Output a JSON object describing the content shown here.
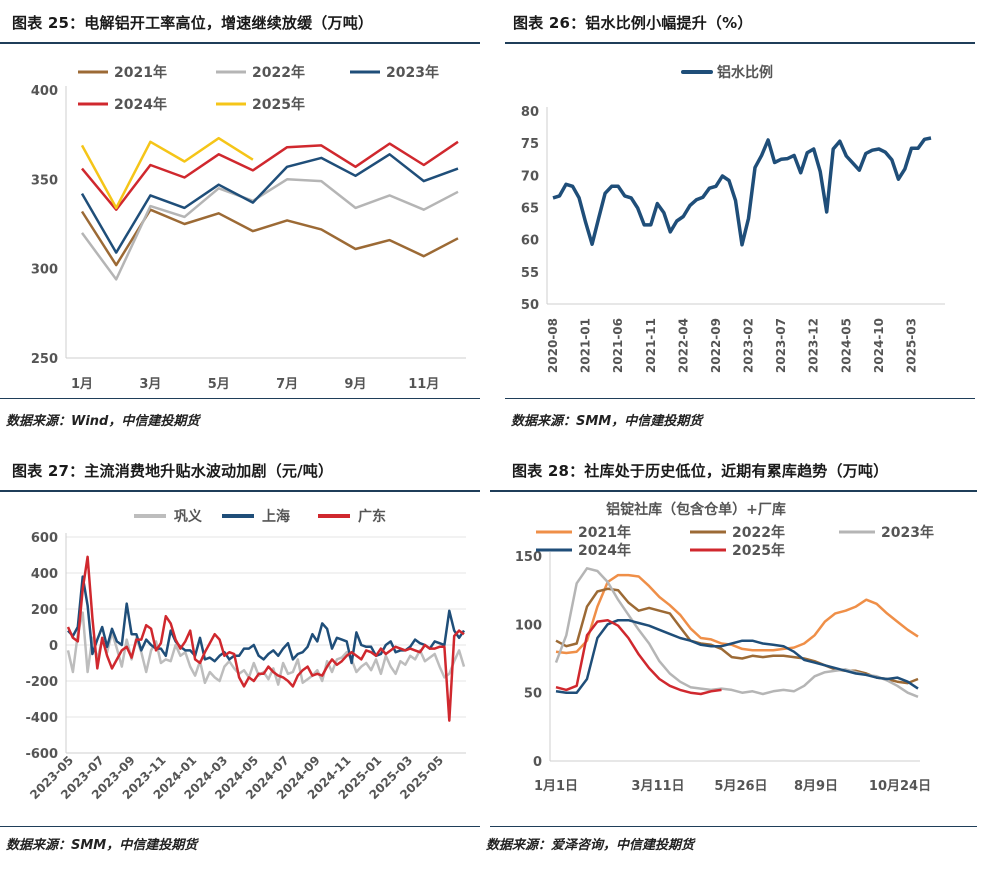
{
  "panels": [
    {
      "title": "图表 25：电解铝开工率高位，增速继续放缓（万吨）",
      "source": "数据来源：Wind，中信建投期货"
    },
    {
      "title": "图表 26：铝水比例小幅提升（%）",
      "source": "数据来源：SMM，中信建投期货"
    },
    {
      "title": "图表 27：主流消费地升贴水波动加剧（元/吨）",
      "source": "数据来源：SMM，中信建投期货"
    },
    {
      "title": "图表 28：社库处于历史低位，近期有累库趋势（万吨）",
      "source": "数据来源：爱泽咨询，中信建投期货"
    }
  ],
  "chart_data": [
    {
      "type": "line",
      "title": "",
      "x_ticks": [
        "1月",
        "3月",
        "5月",
        "7月",
        "9月",
        "11月"
      ],
      "ylim": [
        250,
        400
      ],
      "y_ticks": [
        250,
        300,
        350,
        400
      ],
      "legend_position": "top",
      "grid": false,
      "series": [
        {
          "name": "2021年",
          "color": "#9c6a35",
          "x": [
            1,
            2,
            3,
            4,
            5,
            6,
            7,
            8,
            9,
            10,
            11,
            12
          ],
          "values": [
            332,
            302,
            333,
            325,
            331,
            321,
            327,
            322,
            311,
            316,
            307,
            317
          ]
        },
        {
          "name": "2022年",
          "color": "#b5b5b5",
          "x": [
            1,
            2,
            3,
            4,
            5,
            6,
            7,
            8,
            9,
            10,
            11,
            12
          ],
          "values": [
            320,
            294,
            335,
            329,
            345,
            338,
            350,
            349,
            334,
            341,
            333,
            343
          ]
        },
        {
          "name": "2023年",
          "color": "#1f4e79",
          "x": [
            1,
            2,
            3,
            4,
            5,
            6,
            7,
            8,
            9,
            10,
            11,
            12
          ],
          "values": [
            342,
            309,
            341,
            334,
            347,
            337,
            357,
            362,
            352,
            364,
            349,
            356
          ]
        },
        {
          "name": "2024年",
          "color": "#d0282e",
          "x": [
            1,
            2,
            3,
            4,
            5,
            6,
            7,
            8,
            9,
            10,
            11,
            12
          ],
          "values": [
            356,
            333,
            358,
            351,
            364,
            355,
            368,
            369,
            357,
            370,
            358,
            371
          ]
        },
        {
          "name": "2025年",
          "color": "#f5c518",
          "x": [
            1,
            2,
            3,
            4,
            5,
            6
          ],
          "values": [
            369,
            334,
            371,
            360,
            373,
            361
          ]
        }
      ]
    },
    {
      "type": "line",
      "title": "",
      "ylim": [
        50,
        80
      ],
      "y_ticks": [
        50,
        55,
        60,
        65,
        70,
        75,
        80
      ],
      "x_ticks": [
        "2020-08",
        "2021-01",
        "2021-06",
        "2021-11",
        "2022-04",
        "2022-09",
        "2023-02",
        "2023-07",
        "2023-12",
        "2024-05",
        "2024-10",
        "2025-03"
      ],
      "legend_position": "top",
      "grid": false,
      "series": [
        {
          "name": "铝水比例",
          "color": "#1f4e79",
          "x_start": "2020-08",
          "values": [
            66.5,
            66.8,
            68.6,
            68.3,
            66.5,
            62.7,
            59.3,
            63.3,
            67.2,
            68.3,
            68.3,
            66.8,
            66.5,
            64.9,
            62.3,
            62.3,
            65.6,
            64.2,
            61.2,
            62.9,
            63.6,
            65.3,
            66.2,
            66.6,
            68.0,
            68.3,
            69.9,
            69.2,
            66.1,
            59.2,
            63.3,
            71.2,
            73.1,
            75.5,
            72.0,
            72.5,
            72.6,
            73.1,
            70.4,
            73.5,
            74.1,
            70.6,
            64.3,
            74.1,
            75.3,
            73.0,
            71.9,
            70.8,
            73.4,
            73.9,
            74.1,
            73.6,
            72.4,
            69.4,
            71.0,
            74.2,
            74.2,
            75.6,
            75.8
          ]
        }
      ]
    },
    {
      "type": "line",
      "title": "",
      "ylim": [
        -600,
        600
      ],
      "y_ticks": [
        -600,
        -400,
        -200,
        0,
        200,
        400,
        600
      ],
      "x_ticks": [
        "2023-05",
        "2023-07",
        "2023-09",
        "2023-11",
        "2024-01",
        "2024-03",
        "2024-05",
        "2024-07",
        "2024-09",
        "2024-11",
        "2025-01",
        "2025-03",
        "2025-05"
      ],
      "legend_position": "top",
      "grid": true,
      "series": [
        {
          "name": "巩义",
          "color": "#bdbdbd",
          "values": [
            -30,
            -150,
            60,
            180,
            -150,
            40,
            -80,
            30,
            -40,
            70,
            -20,
            -120,
            30,
            -80,
            40,
            -40,
            -150,
            -30,
            20,
            -100,
            -80,
            -90,
            0,
            -60,
            -40,
            -120,
            -170,
            -90,
            -210,
            -150,
            -180,
            -200,
            -120,
            -90,
            -130,
            -160,
            -140,
            -180,
            -100,
            -170,
            -150,
            -190,
            -130,
            -220,
            -100,
            -160,
            -150,
            -80,
            -210,
            -190,
            -170,
            -140,
            -200,
            -90,
            -150,
            -80,
            -70,
            -40,
            -80,
            -150,
            -120,
            -100,
            -140,
            -80,
            -160,
            -60,
            -120,
            -160,
            -90,
            -110,
            -60,
            -80,
            -30,
            -90,
            -70,
            -50,
            -120,
            -180,
            -160,
            -90,
            -30,
            -120
          ]
        },
        {
          "name": "上海",
          "color": "#1f4e79",
          "values": [
            80,
            50,
            100,
            380,
            220,
            -50,
            30,
            100,
            -10,
            90,
            20,
            0,
            230,
            60,
            60,
            -30,
            30,
            0,
            -20,
            -20,
            -60,
            80,
            20,
            -10,
            -30,
            -30,
            -60,
            40,
            -80,
            -70,
            -90,
            -60,
            -40,
            -80,
            -60,
            -60,
            -20,
            -20,
            0,
            -60,
            -80,
            -50,
            -30,
            -60,
            -20,
            10,
            -80,
            -50,
            -40,
            -10,
            60,
            20,
            120,
            90,
            -20,
            40,
            30,
            20,
            -100,
            70,
            0,
            -10,
            -10,
            -60,
            -50,
            0,
            20,
            -40,
            -30,
            -30,
            -10,
            30,
            10,
            0,
            -20,
            20,
            10,
            0,
            190,
            80,
            40,
            80
          ]
        },
        {
          "name": "广东",
          "color": "#d0282e",
          "values": [
            100,
            40,
            20,
            310,
            490,
            150,
            -130,
            40,
            -60,
            -130,
            -80,
            -30,
            -10,
            -70,
            30,
            30,
            110,
            90,
            -30,
            10,
            160,
            120,
            30,
            -20,
            20,
            80,
            -80,
            -100,
            -40,
            10,
            60,
            30,
            -60,
            -40,
            -50,
            -180,
            -230,
            -180,
            -200,
            -160,
            -160,
            -120,
            -150,
            -170,
            -180,
            -200,
            -230,
            -170,
            -140,
            -120,
            -170,
            -160,
            -170,
            -120,
            -80,
            -110,
            -90,
            -60,
            -40,
            -60,
            -80,
            -30,
            -40,
            -60,
            -20,
            -50,
            -30,
            -10,
            -20,
            -30,
            -20,
            -30,
            -40,
            0,
            -20,
            -20,
            -10,
            -10,
            -420,
            50,
            80,
            60
          ]
        }
      ]
    },
    {
      "type": "line",
      "title": "铝锭社库（包含仓单）+厂库",
      "ylim": [
        0,
        150
      ],
      "y_ticks": [
        0,
        50,
        100,
        150
      ],
      "x_ticks": [
        "1月1日",
        "3月11日",
        "5月26日",
        "8月9日",
        "10月24日"
      ],
      "legend_position": "top",
      "grid": false,
      "series": [
        {
          "name": "2021年",
          "color": "#ef8f48",
          "values": [
            80,
            79,
            80,
            88,
            113,
            131,
            136,
            136,
            135,
            128,
            120,
            114,
            107,
            97,
            90,
            89,
            86,
            85,
            82,
            81,
            81,
            81,
            82,
            83,
            86,
            92,
            102,
            108,
            110,
            113,
            118,
            115,
            108,
            102,
            96,
            91
          ]
        },
        {
          "name": "2022年",
          "color": "#9c6a35",
          "values": [
            88,
            84,
            86,
            113,
            124,
            126,
            125,
            116,
            110,
            112,
            110,
            108,
            98,
            88,
            86,
            85,
            82,
            76,
            75,
            77,
            76,
            77,
            77,
            76,
            75,
            73,
            70,
            67,
            66,
            66,
            64,
            61,
            60,
            58,
            57,
            60
          ]
        },
        {
          "name": "2023年",
          "color": "#b5b5b5",
          "values": [
            72,
            92,
            130,
            141,
            139,
            131,
            118,
            107,
            96,
            86,
            73,
            64,
            58,
            54,
            53,
            52,
            53,
            52,
            50,
            51,
            49,
            51,
            52,
            51,
            55,
            62,
            65,
            66,
            67,
            65,
            63,
            62,
            59,
            55,
            50,
            47
          ]
        },
        {
          "name": "2024年",
          "color": "#1f4e79",
          "values": [
            51,
            50,
            50,
            60,
            90,
            100,
            103,
            103,
            101,
            99,
            96,
            93,
            90,
            88,
            85,
            84,
            84,
            86,
            88,
            88,
            86,
            85,
            84,
            80,
            74,
            72,
            70,
            68,
            66,
            64,
            63,
            61,
            60,
            61,
            58,
            53
          ]
        },
        {
          "name": "2025年",
          "color": "#d0282e",
          "values": [
            54,
            52,
            55,
            92,
            102,
            103,
            99,
            90,
            78,
            68,
            60,
            55,
            52,
            50,
            49,
            51,
            52
          ]
        }
      ]
    }
  ]
}
